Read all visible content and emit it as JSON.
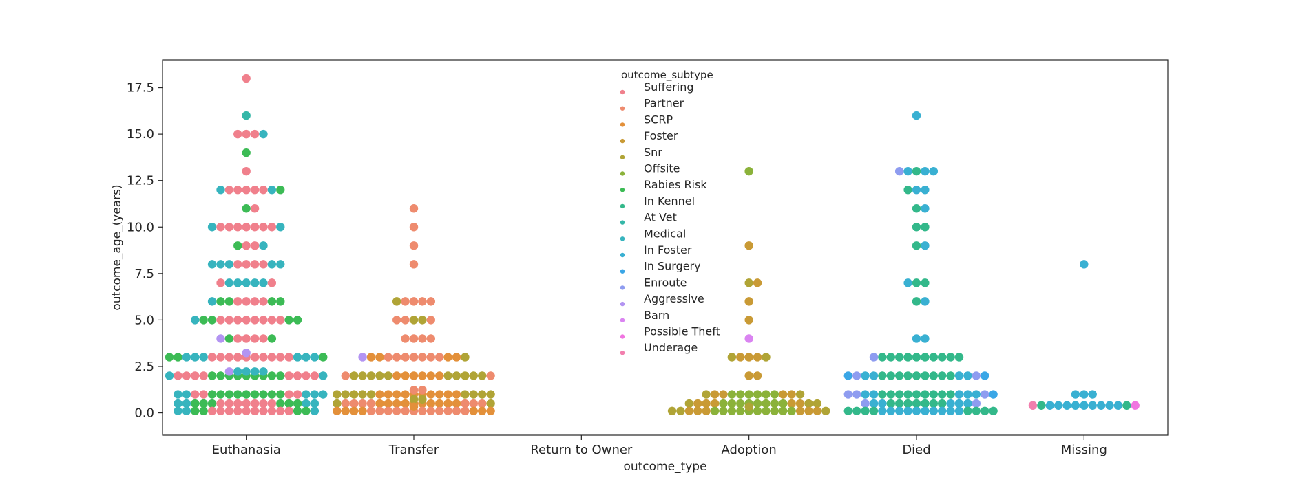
{
  "chart_data": {
    "type": "scatter",
    "subtype": "swarm",
    "xlabel": "outcome_type",
    "ylabel": "outcome_age_(years)",
    "categories": [
      "Euthanasia",
      "Transfer",
      "Return to Owner",
      "Adoption",
      "Died",
      "Missing"
    ],
    "ylim": [
      -1.2,
      19.0
    ],
    "yticks": [
      0.0,
      2.5,
      5.0,
      7.5,
      10.0,
      12.5,
      15.0,
      17.5
    ],
    "ytick_labels": [
      "0.0",
      "2.5",
      "5.0",
      "7.5",
      "10.0",
      "12.5",
      "15.0",
      "17.5"
    ],
    "grid": false,
    "legend": {
      "title": "outcome_subtype",
      "placement": "top-center",
      "entries": [
        {
          "label": "Suffering",
          "color": "#f0808c"
        },
        {
          "label": "Partner",
          "color": "#ee8b6e"
        },
        {
          "label": "SCRP",
          "color": "#e3903a"
        },
        {
          "label": "Foster",
          "color": "#c99a35"
        },
        {
          "label": "Snr",
          "color": "#b0a436"
        },
        {
          "label": "Offsite",
          "color": "#8bb23a"
        },
        {
          "label": "Rabies Risk",
          "color": "#3cbb55"
        },
        {
          "label": "In Kennel",
          "color": "#33b88a"
        },
        {
          "label": "At Vet",
          "color": "#35b7a8"
        },
        {
          "label": "Medical",
          "color": "#37b4be"
        },
        {
          "label": "In Foster",
          "color": "#39b0d2"
        },
        {
          "label": "In Surgery",
          "color": "#3aa6e6"
        },
        {
          "label": "Enroute",
          "color": "#8e9cf0"
        },
        {
          "label": "Aggressive",
          "color": "#b394f2"
        },
        {
          "label": "Barn",
          "color": "#da84f1"
        },
        {
          "label": "Possible Theft",
          "color": "#f075e0"
        },
        {
          "label": "Underage",
          "color": "#f27fae"
        }
      ]
    },
    "groups": [
      {
        "category": "Euthanasia",
        "points": [
          {
            "y": 18,
            "counts": {
              "Suffering": 1
            }
          },
          {
            "y": 16,
            "counts": {
              "At Vet": 1
            }
          },
          {
            "y": 15,
            "counts": {
              "Suffering": 3,
              "Medical": 1
            }
          },
          {
            "y": 14,
            "counts": {
              "Rabies Risk": 1
            }
          },
          {
            "y": 13,
            "counts": {
              "Suffering": 1
            }
          },
          {
            "y": 12,
            "counts": {
              "Suffering": 5,
              "Medical": 2,
              "Rabies Risk": 1
            }
          },
          {
            "y": 11,
            "counts": {
              "Rabies Risk": 1,
              "Suffering": 1
            }
          },
          {
            "y": 10,
            "counts": {
              "Suffering": 7,
              "Medical": 2
            }
          },
          {
            "y": 9,
            "counts": {
              "Suffering": 2,
              "Rabies Risk": 1,
              "Medical": 1
            }
          },
          {
            "y": 8,
            "counts": {
              "Suffering": 4,
              "Medical": 5
            }
          },
          {
            "y": 7,
            "counts": {
              "Medical": 5,
              "Suffering": 2
            }
          },
          {
            "y": 6,
            "counts": {
              "Suffering": 4,
              "Rabies Risk": 4,
              "Medical": 1
            }
          },
          {
            "y": 5,
            "counts": {
              "Suffering": 8,
              "Rabies Risk": 4,
              "Medical": 1
            }
          },
          {
            "y": 4,
            "counts": {
              "Suffering": 4,
              "Rabies Risk": 2,
              "Aggressive": 1
            }
          },
          {
            "y": 3,
            "counts": {
              "Suffering": 10,
              "Medical": 6,
              "Rabies Risk": 3,
              "Aggressive": 1
            }
          },
          {
            "y": 2,
            "counts": {
              "Rabies Risk": 9,
              "Suffering": 8,
              "Medical": 6,
              "Aggressive": 1
            }
          },
          {
            "y": 1,
            "counts": {
              "Rabies Risk": 9,
              "Suffering": 4,
              "Medical": 5
            }
          },
          {
            "y": 0.5,
            "counts": {
              "Suffering": 7,
              "Rabies Risk": 6,
              "Medical": 4
            }
          },
          {
            "y": 0.1,
            "counts": {
              "Suffering": 10,
              "Rabies Risk": 4,
              "Medical": 3
            }
          }
        ]
      },
      {
        "category": "Transfer",
        "points": [
          {
            "y": 11,
            "counts": {
              "Partner": 1
            }
          },
          {
            "y": 10,
            "counts": {
              "Partner": 1
            }
          },
          {
            "y": 9,
            "counts": {
              "Partner": 1
            }
          },
          {
            "y": 8,
            "counts": {
              "Partner": 1
            }
          },
          {
            "y": 6,
            "counts": {
              "Partner": 4,
              "Snr": 1
            }
          },
          {
            "y": 5,
            "counts": {
              "Snr": 2,
              "Partner": 3
            }
          },
          {
            "y": 4,
            "counts": {
              "Partner": 4
            }
          },
          {
            "y": 3,
            "counts": {
              "Partner": 7,
              "SCRP": 4,
              "Snr": 1,
              "Aggressive": 1
            }
          },
          {
            "y": 2,
            "counts": {
              "SCRP": 6,
              "Snr": 10,
              "Partner": 2
            }
          },
          {
            "y": 1,
            "counts": {
              "SCRP": 10,
              "Snr": 9,
              "Partner": 2
            }
          },
          {
            "y": 0.5,
            "counts": {
              "SCRP": 10,
              "Partner": 7,
              "Snr": 4
            }
          },
          {
            "y": 0.1,
            "counts": {
              "Partner": 12,
              "SCRP": 8
            }
          }
        ]
      },
      {
        "category": "Return to Owner",
        "points": []
      },
      {
        "category": "Adoption",
        "points": [
          {
            "y": 13,
            "counts": {
              "Offsite": 1
            }
          },
          {
            "y": 9,
            "counts": {
              "Foster": 1
            }
          },
          {
            "y": 7,
            "counts": {
              "Snr": 1,
              "Foster": 1
            }
          },
          {
            "y": 6,
            "counts": {
              "Foster": 1
            }
          },
          {
            "y": 5,
            "counts": {
              "Foster": 1
            }
          },
          {
            "y": 4,
            "counts": {
              "Barn": 1
            }
          },
          {
            "y": 3,
            "counts": {
              "Foster": 3,
              "Snr": 2
            }
          },
          {
            "y": 2,
            "counts": {
              "Foster": 2
            }
          },
          {
            "y": 1,
            "counts": {
              "Offsite": 6,
              "Foster": 4,
              "Snr": 2
            }
          },
          {
            "y": 0.5,
            "counts": {
              "Offsite": 8,
              "Foster": 5,
              "Snr": 3
            }
          },
          {
            "y": 0.1,
            "counts": {
              "Offsite": 10,
              "Foster": 6,
              "Snr": 4
            }
          }
        ]
      },
      {
        "category": "Died",
        "points": [
          {
            "y": 16,
            "counts": {
              "In Foster": 1
            }
          },
          {
            "y": 13,
            "counts": {
              "In Kennel": 1,
              "In Foster": 3,
              "Enroute": 1
            }
          },
          {
            "y": 12,
            "counts": {
              "In Foster": 2,
              "In Kennel": 1
            }
          },
          {
            "y": 11,
            "counts": {
              "In Kennel": 1,
              "In Foster": 1
            }
          },
          {
            "y": 10,
            "counts": {
              "In Kennel": 2
            }
          },
          {
            "y": 9,
            "counts": {
              "In Kennel": 1,
              "In Foster": 1
            }
          },
          {
            "y": 7,
            "counts": {
              "In Kennel": 2,
              "In Foster": 1
            }
          },
          {
            "y": 6,
            "counts": {
              "In Kennel": 1,
              "In Foster": 1
            }
          },
          {
            "y": 4,
            "counts": {
              "In Foster": 2
            }
          },
          {
            "y": 3,
            "counts": {
              "In Kennel": 10,
              "Enroute": 1
            }
          },
          {
            "y": 2,
            "counts": {
              "In Kennel": 9,
              "In Foster": 4,
              "Enroute": 2,
              "In Surgery": 2
            }
          },
          {
            "y": 1,
            "counts": {
              "In Kennel": 9,
              "In Foster": 5,
              "Enroute": 3,
              "In Surgery": 1
            }
          },
          {
            "y": 0.5,
            "counts": {
              "In Kennel": 7,
              "In Foster": 5,
              "Enroute": 2
            }
          },
          {
            "y": 0.1,
            "counts": {
              "In Foster": 10,
              "In Kennel": 8
            }
          }
        ]
      },
      {
        "category": "Missing",
        "points": [
          {
            "y": 8,
            "counts": {
              "In Foster": 1
            }
          },
          {
            "y": 1,
            "counts": {
              "In Foster": 3
            }
          },
          {
            "y": 0.4,
            "counts": {
              "In Foster": 9,
              "In Kennel": 2,
              "Possible Theft": 1,
              "Underage": 1
            }
          }
        ]
      }
    ]
  }
}
